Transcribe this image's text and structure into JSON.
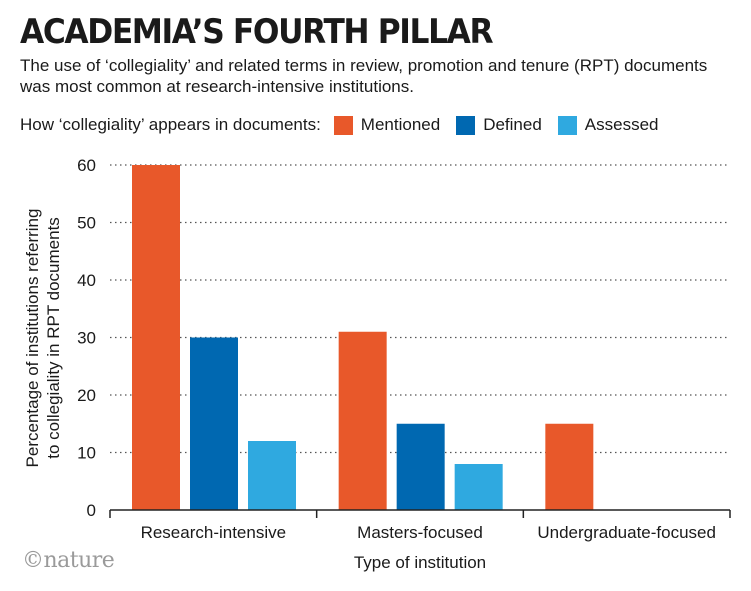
{
  "header": {
    "title": "ACADEMIA’S FOURTH PILLAR",
    "subtitle": "The use of ‘collegiality’ and related terms in review, promotion and tenure (RPT) documents was most common at research-intensive institutions."
  },
  "legend": {
    "lead": "How ‘collegiality’ appears in documents:"
  },
  "credit": "©nature",
  "chart_data": {
    "type": "bar",
    "categories": [
      "Research-intensive",
      "Masters-focused",
      "Undergraduate-focused"
    ],
    "series": [
      {
        "name": "Mentioned",
        "color": "#e8582a",
        "values": [
          60,
          31,
          15
        ]
      },
      {
        "name": "Defined",
        "color": "#0068b1",
        "values": [
          30,
          15,
          null
        ]
      },
      {
        "name": "Assessed",
        "color": "#2fa9e0",
        "values": [
          12,
          8,
          null
        ]
      }
    ],
    "xlabel": "Type of institution",
    "ylabel": [
      "Percentage of institutions referring",
      "to collegiality in RPT documents"
    ],
    "ylim": [
      0,
      60
    ],
    "yticks": [
      0,
      10,
      20,
      30,
      40,
      50,
      60
    ],
    "grid": true,
    "legend_position": "top"
  }
}
